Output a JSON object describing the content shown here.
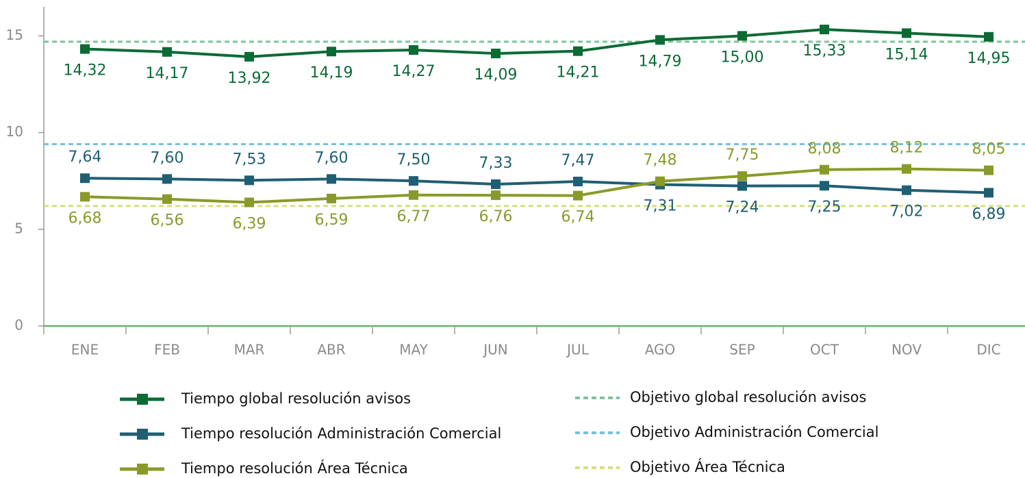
{
  "chart_data": {
    "type": "line",
    "categories": [
      "ENE",
      "FEB",
      "MAR",
      "ABR",
      "MAY",
      "JUN",
      "JUL",
      "AGO",
      "SEP",
      "OCT",
      "NOV",
      "DIC"
    ],
    "series": [
      {
        "name": "Tiempo global resolución avisos",
        "color": "#0b6b35",
        "values": [
          14.32,
          14.17,
          13.92,
          14.19,
          14.27,
          14.09,
          14.21,
          14.79,
          15.0,
          15.33,
          15.14,
          14.95
        ],
        "value_labels": [
          "14,32",
          "14,17",
          "13,92",
          "14,19",
          "14,27",
          "14,09",
          "14,21",
          "14,79",
          "15,00",
          "15,33",
          "15,14",
          "14,95"
        ]
      },
      {
        "name": "Tiempo resolución Administración Comercial",
        "color": "#1f5f73",
        "values": [
          7.64,
          7.6,
          7.53,
          7.6,
          7.5,
          7.33,
          7.47,
          7.31,
          7.24,
          7.25,
          7.02,
          6.89
        ],
        "value_labels": [
          "7,64",
          "7,60",
          "7,53",
          "7,60",
          "7,50",
          "7,33",
          "7,47",
          "7,31",
          "7,24",
          "7,25",
          "7,02",
          "6,89"
        ]
      },
      {
        "name": "Tiempo resolución Área Técnica",
        "color": "#8a9a2a",
        "values": [
          6.68,
          6.56,
          6.39,
          6.59,
          6.77,
          6.76,
          6.74,
          7.48,
          7.75,
          8.08,
          8.12,
          8.05
        ],
        "value_labels": [
          "6,68",
          "6,56",
          "6,39",
          "6,59",
          "6,77",
          "6,76",
          "6,74",
          "7,48",
          "7,75",
          "8,08",
          "8,12",
          "8,05"
        ]
      }
    ],
    "targets": [
      {
        "name": "Objetivo global resolución avisos",
        "color": "#7cc49a",
        "value": 14.7
      },
      {
        "name": "Objetivo Administración Comercial",
        "color": "#6fc3e0",
        "value": 9.4
      },
      {
        "name": "Objetivo Área Técnica",
        "color": "#d5e07a",
        "value": 6.2
      }
    ],
    "ylim": [
      0,
      16.5
    ],
    "yticks": [
      0,
      5,
      10,
      15
    ]
  }
}
